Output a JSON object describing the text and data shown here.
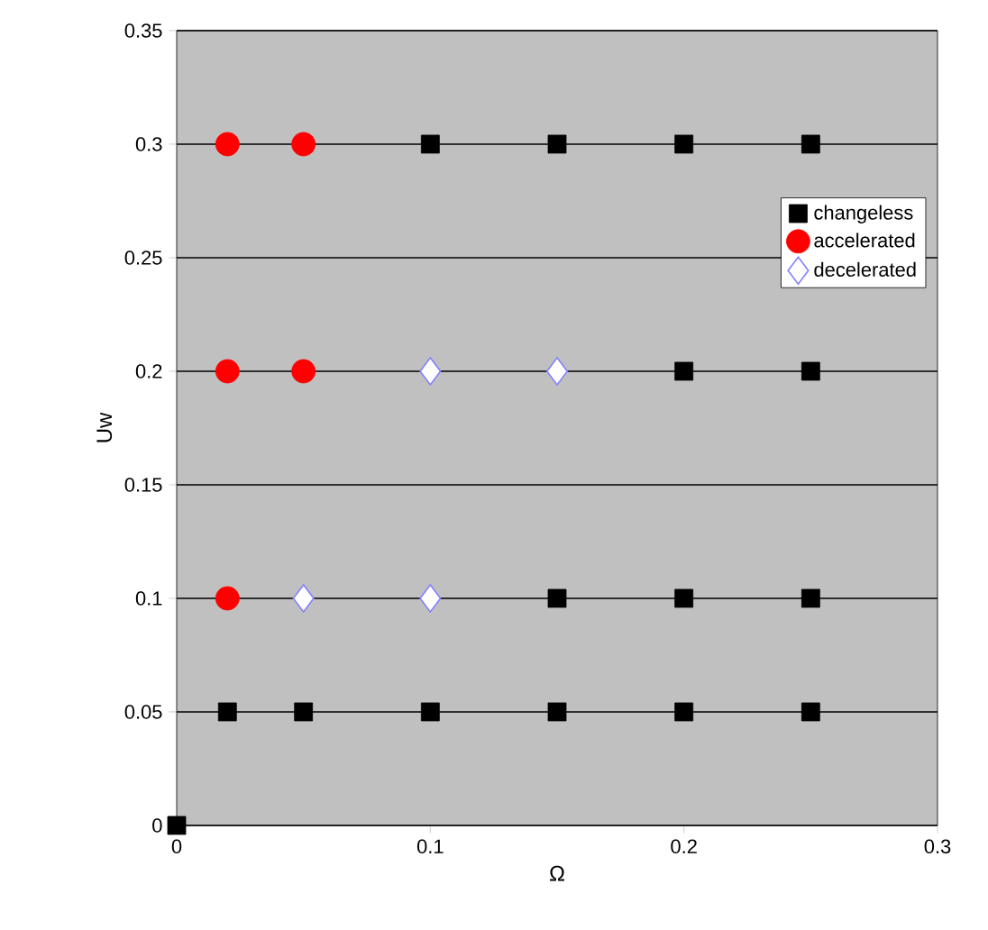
{
  "chart_data": {
    "type": "scatter",
    "xlabel": "Ω",
    "ylabel": "Uw",
    "xlim": [
      0,
      0.3
    ],
    "xticks": [
      0,
      0.1,
      0.2,
      0.3
    ],
    "ylim": [
      0,
      0.35
    ],
    "yticks": [
      0,
      0.05,
      0.1,
      0.15,
      0.2,
      0.25,
      0.3,
      0.35
    ],
    "grid": "y",
    "legend": "top right",
    "series": [
      {
        "name": "changeless",
        "color": "#000000",
        "marker": "square",
        "x": [
          0,
          0.02,
          0.05,
          0.1,
          0.15,
          0.2,
          0.25,
          0.15,
          0.2,
          0.25,
          0.2,
          0.25,
          0.1,
          0.15,
          0.2,
          0.25
        ],
        "values": [
          0,
          0.05,
          0.05,
          0.05,
          0.05,
          0.05,
          0.05,
          0.1,
          0.1,
          0.1,
          0.2,
          0.2,
          0.3,
          0.3,
          0.3,
          0.3
        ]
      },
      {
        "name": "accelerated",
        "color": "#ff0000",
        "marker": "circle",
        "x": [
          0.02,
          0.02,
          0.05,
          0.02,
          0.05
        ],
        "values": [
          0.1,
          0.2,
          0.2,
          0.3,
          0.3
        ]
      },
      {
        "name": "decelerated",
        "color": "#8080ff",
        "marker": "diamond",
        "x": [
          0.05,
          0.1,
          0.1,
          0.15
        ],
        "values": [
          0.1,
          0.1,
          0.2,
          0.2
        ]
      }
    ]
  }
}
